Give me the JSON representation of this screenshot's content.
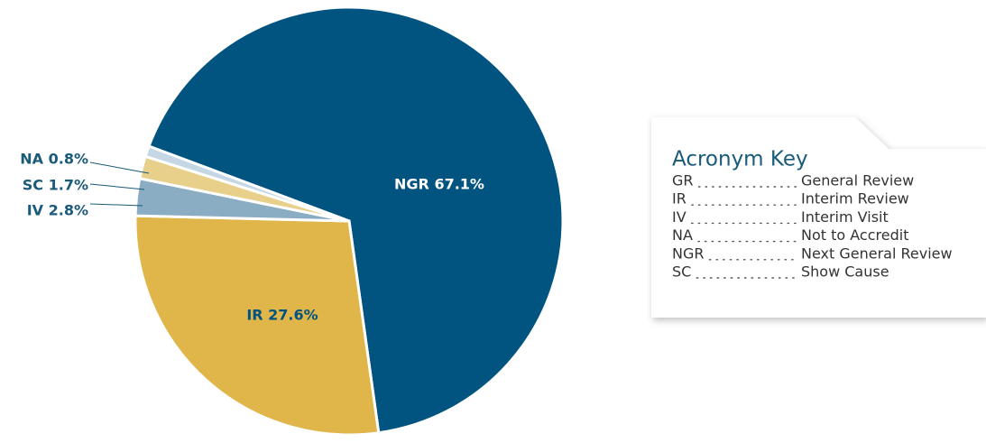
{
  "chart_data": {
    "type": "pie",
    "categories": [
      "NGR",
      "IR",
      "IV",
      "SC",
      "NA"
    ],
    "values": [
      67.1,
      27.6,
      2.8,
      1.7,
      0.8
    ],
    "value_labels": [
      "NGR 67.1%",
      "IR 27.6%",
      "IV 2.8%",
      "SC 1.7%",
      "NA 0.8%"
    ],
    "colors": [
      "#00547f",
      "#e0b54a",
      "#8badc4",
      "#e8d08a",
      "#c5d7e5"
    ]
  },
  "acronym_key": {
    "title": "Acronym Key",
    "entries": [
      {
        "acronym": "GR",
        "meaning": "General Review"
      },
      {
        "acronym": "IR",
        "meaning": "Interim Review"
      },
      {
        "acronym": "IV",
        "meaning": "Interim Visit"
      },
      {
        "acronym": "NA",
        "meaning": "Not to Accredit"
      },
      {
        "acronym": "NGR",
        "meaning": "Next General Review"
      },
      {
        "acronym": "SC",
        "meaning": "Show Cause"
      }
    ]
  }
}
